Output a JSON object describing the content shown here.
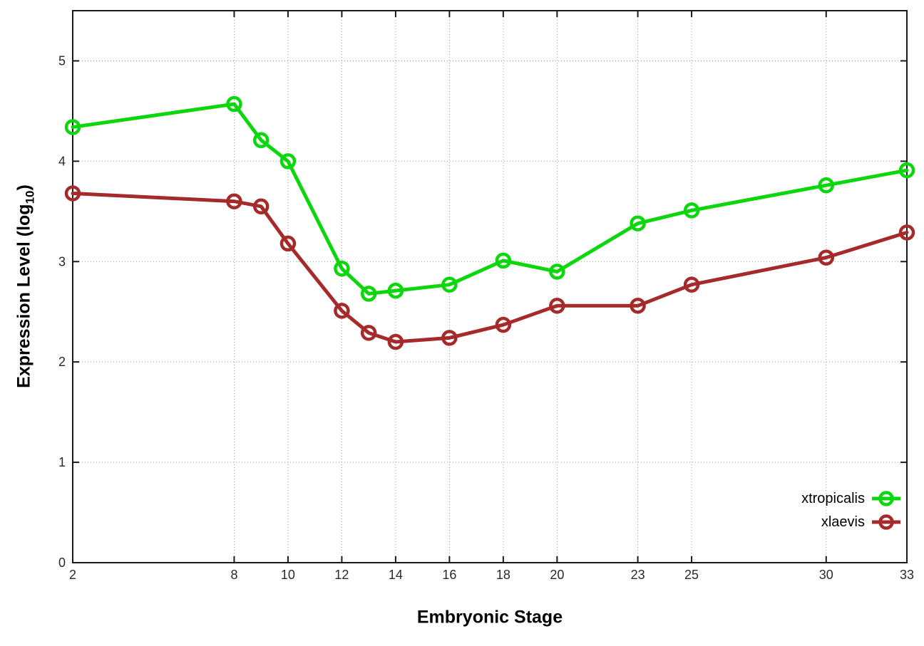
{
  "chart_data": {
    "type": "line",
    "title": "",
    "xlabel": "Embryonic Stage",
    "ylabel": {
      "prefix": "Expression Level (log",
      "sub": "10",
      "suffix": ")"
    },
    "x": [
      2,
      8,
      9,
      10,
      12,
      13,
      14,
      16,
      18,
      20,
      23,
      25,
      30,
      33
    ],
    "x_tick_labels": [
      2,
      8,
      10,
      12,
      14,
      16,
      18,
      20,
      23,
      25,
      30,
      33
    ],
    "y_tick_labels": [
      0,
      1,
      2,
      3,
      4,
      5
    ],
    "xlim": [
      2,
      33
    ],
    "ylim": [
      0,
      5.5
    ],
    "grid": true,
    "legend_position": "bottom-right",
    "series": [
      {
        "name": "xtropicalis",
        "color": "#0cd60c",
        "values": [
          4.34,
          4.57,
          4.21,
          4.0,
          2.93,
          2.68,
          2.71,
          2.77,
          3.01,
          2.9,
          3.38,
          3.51,
          3.76,
          3.91
        ]
      },
      {
        "name": "xlaevis",
        "color": "#a52a2a",
        "values": [
          3.68,
          3.6,
          3.55,
          3.18,
          2.51,
          2.29,
          2.2,
          2.24,
          2.37,
          2.56,
          2.56,
          2.77,
          3.04,
          3.29
        ]
      }
    ],
    "axis_color": "#1a1a1a",
    "grid_color": "#9e9e9e",
    "tick_label_color": "#2a2a2a"
  }
}
